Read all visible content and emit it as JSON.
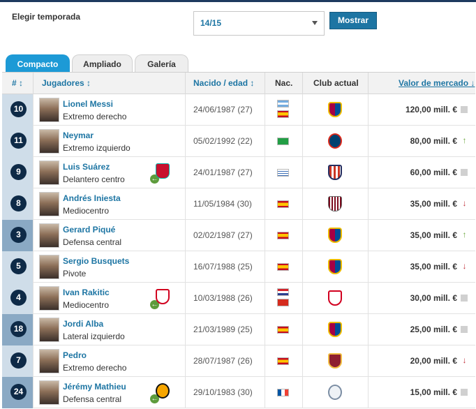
{
  "season": {
    "label": "Elegir temporada",
    "selected": "14/15",
    "button": "Mostrar"
  },
  "tabs": [
    "Compacto",
    "Ampliado",
    "Galería"
  ],
  "columns": {
    "number": "# ↕",
    "players": "Jugadores ↕",
    "born": "Nacido / edad ↕",
    "nat": "Nac.",
    "club": "Club actual",
    "value": "Valor de mercado ↓"
  },
  "players": [
    {
      "number": "10",
      "name": "Lionel Messi",
      "position": "Extremo derecho",
      "born": "24/06/1987 (27)",
      "flags": [
        "argentina",
        "spain"
      ],
      "club": "barcelona",
      "value": "120,00 mill. €",
      "trend": "same",
      "loan": null
    },
    {
      "number": "11",
      "name": "Neymar",
      "position": "Extremo izquierdo",
      "born": "05/02/1992 (22)",
      "flags": [
        "brazil"
      ],
      "club": "psg",
      "value": "80,00 mill. €",
      "trend": "up",
      "loan": null
    },
    {
      "number": "9",
      "name": "Luis Suárez",
      "position": "Delantero centro",
      "born": "24/01/1987 (27)",
      "flags": [
        "uruguay"
      ],
      "club": "atletico",
      "value": "60,00 mill. €",
      "trend": "same",
      "loan": "liverpool"
    },
    {
      "number": "8",
      "name": "Andrés Iniesta",
      "position": "Mediocentro",
      "born": "11/05/1984 (30)",
      "flags": [
        "spain"
      ],
      "club": "vissel",
      "value": "35,00 mill. €",
      "trend": "down",
      "loan": null
    },
    {
      "number": "3",
      "name": "Gerard Piqué",
      "position": "Defensa central",
      "born": "02/02/1987 (27)",
      "flags": [
        "spain"
      ],
      "club": "barcelona",
      "value": "35,00 mill. €",
      "trend": "up",
      "loan": null
    },
    {
      "number": "5",
      "name": "Sergio Busquets",
      "position": "Pivote",
      "born": "16/07/1988 (25)",
      "flags": [
        "spain"
      ],
      "club": "barcelona",
      "value": "35,00 mill. €",
      "trend": "down",
      "loan": null
    },
    {
      "number": "4",
      "name": "Ivan Rakitic",
      "position": "Mediocentro",
      "born": "10/03/1988 (26)",
      "flags": [
        "croatia",
        "switzerland"
      ],
      "club": "sevilla",
      "value": "30,00 mill. €",
      "trend": "same",
      "loan": "sevilla"
    },
    {
      "number": "18",
      "name": "Jordi Alba",
      "position": "Lateral izquierdo",
      "born": "21/03/1989 (25)",
      "flags": [
        "spain"
      ],
      "club": "barcelona",
      "value": "25,00 mill. €",
      "trend": "same",
      "loan": null
    },
    {
      "number": "7",
      "name": "Pedro",
      "position": "Extremo derecho",
      "born": "28/07/1987 (26)",
      "flags": [
        "spain"
      ],
      "club": "roma",
      "value": "20,00 mill. €",
      "trend": "down",
      "loan": null
    },
    {
      "number": "24",
      "name": "Jérémy Mathieu",
      "position": "Defensa central",
      "born": "29/10/1983 (30)",
      "flags": [
        "france"
      ],
      "club": "sporting",
      "value": "15,00 mill. €",
      "trend": "same",
      "loan": "valencia"
    }
  ]
}
